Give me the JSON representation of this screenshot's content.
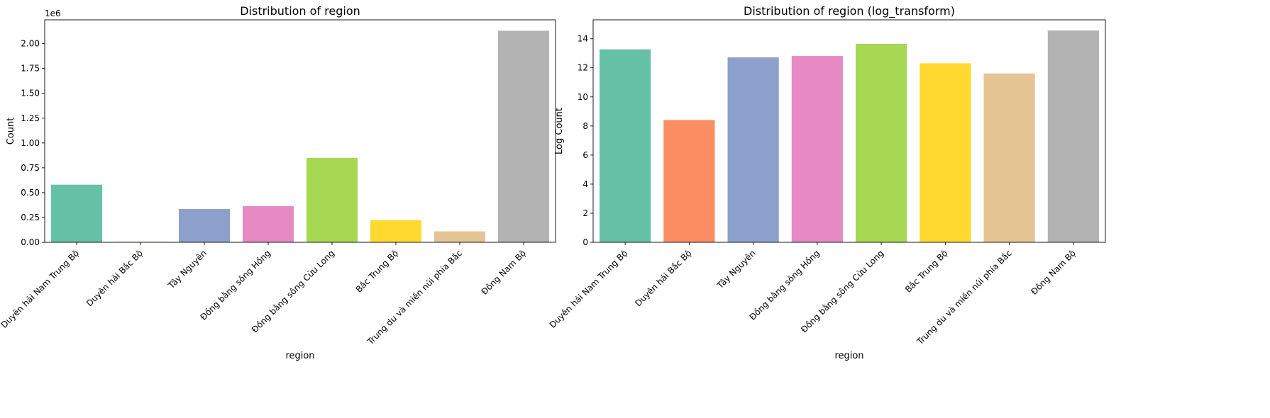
{
  "chart_data": [
    {
      "type": "bar",
      "title": "Distribution of region",
      "xlabel": "region",
      "ylabel": "Count",
      "offset_label": "1e6",
      "categories": [
        "Duyên hải Nam Trung Bộ",
        "Duyên hải Bắc Bộ",
        "Tây Nguyên",
        "Đồng bằng sông Hồng",
        "Đồng bằng sông Cửu Long",
        "Bắc Trung Bộ",
        "Trung du và miền núi phía Bắc",
        "Đông Nam Bộ"
      ],
      "values": [
        580000,
        4500,
        335000,
        365000,
        850000,
        222000,
        110000,
        2130000
      ],
      "ylim": [
        0,
        2240000
      ],
      "yticks": [
        0,
        250000,
        500000,
        750000,
        1000000,
        1250000,
        1500000,
        1750000,
        2000000
      ],
      "ytick_labels": [
        "0.00",
        "0.25",
        "0.50",
        "0.75",
        "1.00",
        "1.25",
        "1.50",
        "1.75",
        "2.00"
      ],
      "grid": false,
      "colors": [
        "#66c2a5",
        "#fc8d62",
        "#8da0cb",
        "#e78ac3",
        "#a6d854",
        "#ffd92f",
        "#e5c494",
        "#b3b3b3"
      ]
    },
    {
      "type": "bar",
      "title": "Distribution of region (log_transform)",
      "xlabel": "region",
      "ylabel": "Log Count",
      "categories": [
        "Duyên hải Nam Trung Bộ",
        "Duyên hải Bắc Bộ",
        "Tây Nguyên",
        "Đồng bằng sông Hồng",
        "Đồng bằng sông Cửu Long",
        "Bắc Trung Bộ",
        "Trung du và miền núi phía Bắc",
        "Đông Nam Bộ"
      ],
      "values": [
        13.27,
        8.41,
        12.72,
        12.81,
        13.65,
        12.31,
        11.61,
        14.57
      ],
      "ylim": [
        0,
        15.3
      ],
      "yticks": [
        0,
        2,
        4,
        6,
        8,
        10,
        12,
        14
      ],
      "ytick_labels": [
        "0",
        "2",
        "4",
        "6",
        "8",
        "10",
        "12",
        "14"
      ],
      "grid": false,
      "colors": [
        "#66c2a5",
        "#fc8d62",
        "#8da0cb",
        "#e78ac3",
        "#a6d854",
        "#ffd92f",
        "#e5c494",
        "#b3b3b3"
      ]
    }
  ]
}
